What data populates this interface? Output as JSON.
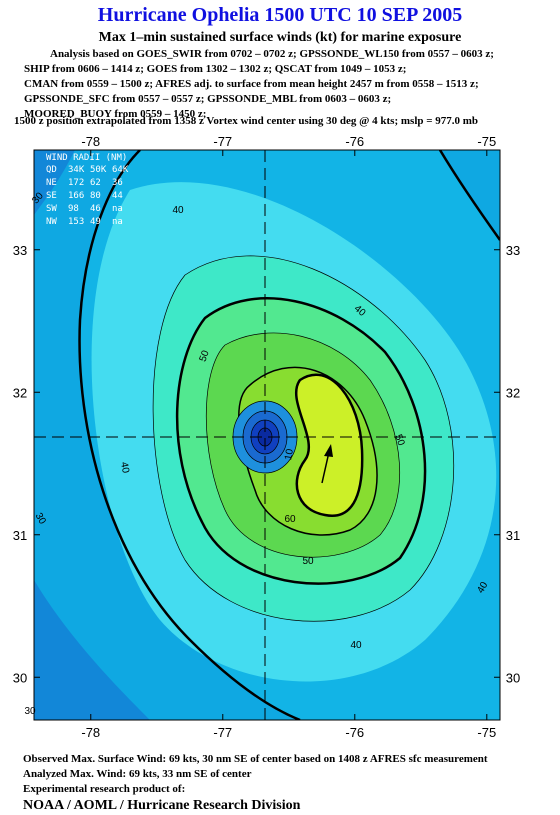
{
  "header": {
    "title": "Hurricane Ophelia 1500 UTC 10 SEP 2005",
    "subtitle": "Max 1–min sustained surface winds (kt) for marine exposure",
    "analysis": [
      "Analysis based on  GOES_SWIR from 0702 – 0702 z;  GPSSONDE_WL150 from 0557 – 0603 z;",
      "SHIP from 0606 – 1414 z;  GOES from 1302 – 1302 z;  QSCAT from 1049 – 1053 z;",
      "CMAN from 0559 – 1500 z;  AFRES adj. to surface from mean height 2457 m from 0558 – 1513 z;",
      "GPSSONDE_SFC from 0557 – 0557 z;  GPSSONDE_MBL from 0603 – 0603 z;",
      "MOORED_BUOY from 0559 – 1450 z;"
    ],
    "position": "1500 z position extrapolated from 1358 z Vortex wind center using 30 deg @ 4 kts; mslp = 977.0 mb"
  },
  "map": {
    "xlim": [
      -78.43,
      -74.9
    ],
    "ylim": [
      29.7,
      33.7
    ],
    "xticks": [
      -78,
      -77,
      -76,
      -75
    ],
    "yticks": [
      30,
      31,
      32,
      33
    ],
    "wind_radii": {
      "title": "WIND RADII (NM)",
      "rows": [
        [
          "QD",
          "34K",
          "50K",
          "64K"
        ],
        [
          "NE",
          "172",
          "62",
          "36"
        ],
        [
          "SE",
          "166",
          "80",
          "44"
        ],
        [
          "SW",
          "98",
          "46",
          "na"
        ],
        [
          "NW",
          "153",
          "49",
          "na"
        ]
      ]
    },
    "contour_labels": [
      40,
      40,
      50,
      50,
      40,
      60,
      50,
      30,
      40,
      40,
      30,
      10,
      30
    ]
  },
  "footer": {
    "lines": [
      "Observed Max. Surface Wind: 69 kts, 30 nm SE of center based on 1408 z AFRES sfc measurement",
      "Analyzed Max. Wind: 69 kts, 33 nm SE of center",
      "Experimental research product of:"
    ],
    "org": "NOAA / AOML / Hurricane Research Division"
  }
}
